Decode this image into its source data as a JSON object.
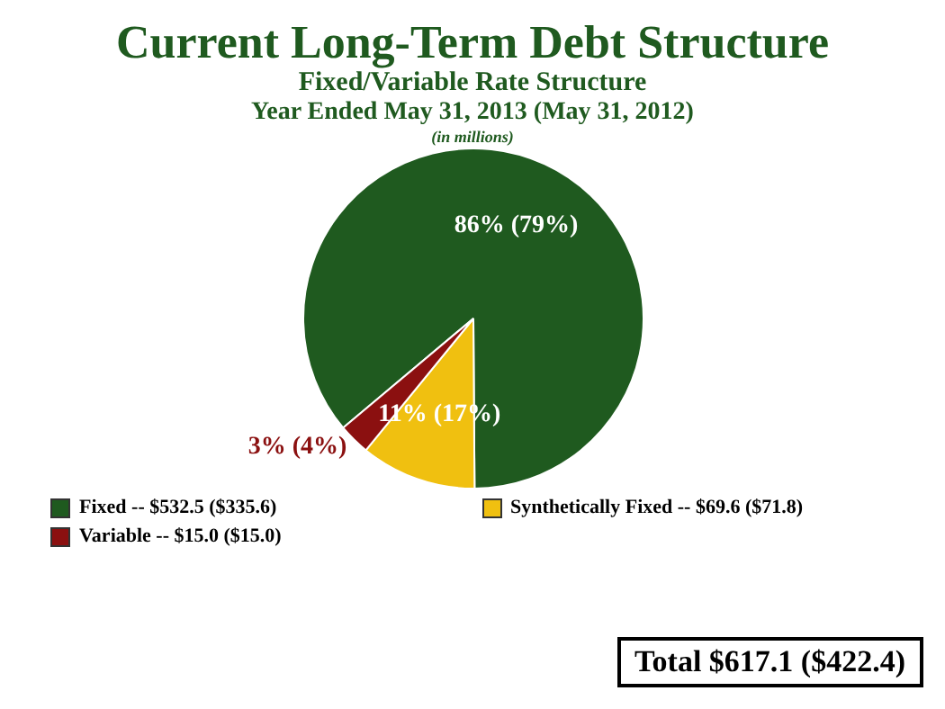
{
  "chart_data": {
    "type": "pie",
    "title": "Current Long-Term Debt Structure",
    "subtitle": "Fixed/Variable Rate Structure",
    "categories": [
      "Fixed -- $532.5 ($335.6)",
      "Synthetically Fixed -- $69.6 ($71.8)",
      "Variable -- $15.0 ($15.0)"
    ],
    "values": [
      86,
      11,
      3
    ],
    "colors": [
      "#1f5a1f",
      "#f0c010",
      "#8b1010"
    ],
    "value_labels": [
      "86% (79%)",
      "11% (17%)",
      "3% (4%)"
    ],
    "legend": "bottom",
    "annotations": [
      "Year Ended May 31, 2013 (May 31, 2012)",
      "(in millions)",
      "Total $617.1 ($422.4)"
    ]
  }
}
